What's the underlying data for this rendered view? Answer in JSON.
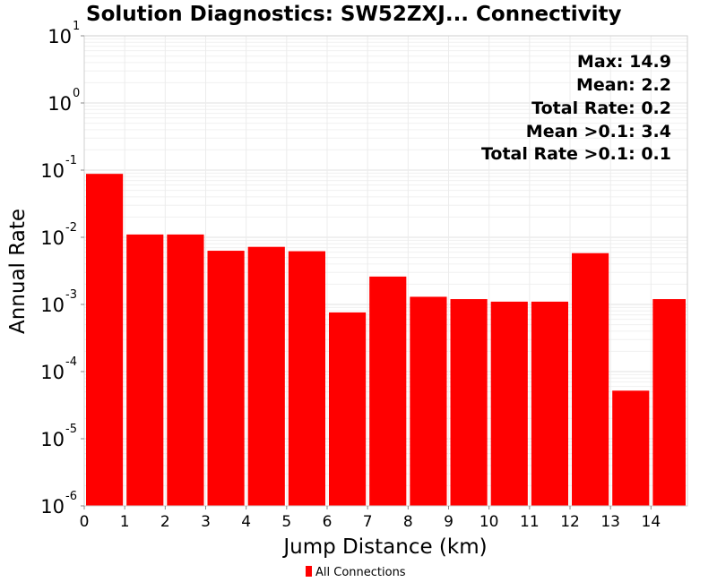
{
  "chart_data": {
    "type": "bar",
    "title": "Solution Diagnostics: SW52ZXJ... Connectivity",
    "xlabel": "Jump Distance (km)",
    "ylabel": "Annual Rate",
    "yscale": "log",
    "ylim": [
      1e-06,
      10
    ],
    "xlim": [
      0,
      14.9
    ],
    "x_ticks": [
      0,
      1,
      2,
      3,
      4,
      5,
      6,
      7,
      8,
      9,
      10,
      11,
      12,
      13,
      14
    ],
    "y_tick_exponents": [
      1,
      0,
      -1,
      -2,
      -3,
      -4,
      -5,
      -6
    ],
    "grid": true,
    "legend": {
      "position": "bottom",
      "entries": [
        {
          "name": "All Connections",
          "color": "#ff0000"
        }
      ]
    },
    "stats": [
      "Max: 14.9",
      "Mean: 2.2",
      "Total Rate: 0.2",
      "Mean >0.1: 3.4",
      "Total Rate >0.1: 0.1"
    ],
    "bars": [
      {
        "x0": 0,
        "x1": 1,
        "value": 0.088
      },
      {
        "x0": 1,
        "x1": 2,
        "value": 0.011
      },
      {
        "x0": 2,
        "x1": 3,
        "value": 0.011
      },
      {
        "x0": 3,
        "x1": 4,
        "value": 0.0063
      },
      {
        "x0": 4,
        "x1": 5,
        "value": 0.0072
      },
      {
        "x0": 5,
        "x1": 6,
        "value": 0.0062
      },
      {
        "x0": 6,
        "x1": 7,
        "value": 0.00076
      },
      {
        "x0": 7,
        "x1": 8,
        "value": 0.0026
      },
      {
        "x0": 8,
        "x1": 9,
        "value": 0.0013
      },
      {
        "x0": 9,
        "x1": 10,
        "value": 0.0012
      },
      {
        "x0": 10,
        "x1": 11,
        "value": 0.0011
      },
      {
        "x0": 11,
        "x1": 12,
        "value": 0.0011
      },
      {
        "x0": 12,
        "x1": 13,
        "value": 0.0058
      },
      {
        "x0": 13,
        "x1": 14,
        "value": 5.2e-05
      },
      {
        "x0": 14,
        "x1": 14.9,
        "value": 0.0012
      }
    ],
    "bar_color": "#ff0000"
  }
}
